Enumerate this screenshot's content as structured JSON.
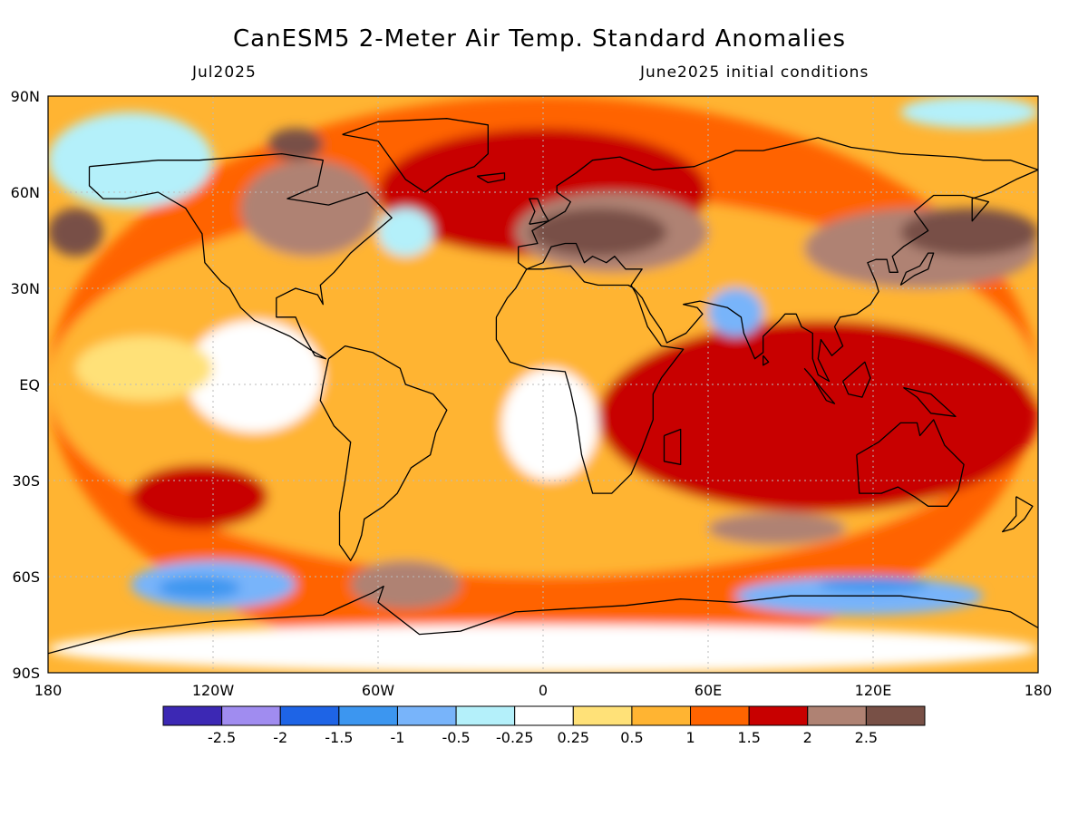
{
  "header": {
    "title": "CanESM5 2-Meter Air Temp. Standard Anomalies",
    "target_month": "Jul2025",
    "initial_conditions": "June2025 initial conditions"
  },
  "axes": {
    "lat_labels": [
      "90N",
      "60N",
      "30N",
      "EQ",
      "30S",
      "60S",
      "90S"
    ],
    "lon_labels": [
      "180",
      "120W",
      "60W",
      "0",
      "60E",
      "120E",
      "180"
    ]
  },
  "legend": {
    "tick_labels": [
      "-2.5",
      "-2",
      "-1.5",
      "-1",
      "-0.5",
      "-0.25",
      "0.25",
      "0.5",
      "1",
      "1.5",
      "2",
      "2.5"
    ],
    "colors": [
      "#3c28b4",
      "#a08cf0",
      "#1e64e6",
      "#3c96f0",
      "#78b4fa",
      "#b4f0fa",
      "#ffffff",
      "#ffe178",
      "#ffb432",
      "#ff6400",
      "#c80000",
      "#af8273",
      "#785046"
    ]
  },
  "map_style": {
    "ocean_base": "#ffb432",
    "coastline": "#000000",
    "grid": "#bbbbbb"
  },
  "anomaly_regions": [
    {
      "category": 9,
      "lon": [
        -180,
        180
      ],
      "lat": [
        -90,
        90
      ]
    },
    {
      "category": 8,
      "lon": [
        -180,
        180
      ],
      "lat": [
        -60,
        60
      ]
    },
    {
      "category": 10,
      "lon": [
        -150,
        -100
      ],
      "lat": [
        -45,
        -25
      ]
    },
    {
      "category": 10,
      "lon": [
        -60,
        60
      ],
      "lat": [
        40,
        80
      ]
    },
    {
      "category": 11,
      "lon": [
        -10,
        60
      ],
      "lat": [
        35,
        60
      ]
    },
    {
      "category": 12,
      "lon": [
        -5,
        45
      ],
      "lat": [
        40,
        55
      ]
    },
    {
      "category": 11,
      "lon": [
        95,
        180
      ],
      "lat": [
        30,
        55
      ]
    },
    {
      "category": 12,
      "lon": [
        130,
        180
      ],
      "lat": [
        40,
        55
      ]
    },
    {
      "category": 12,
      "lon": [
        -180,
        -160
      ],
      "lat": [
        40,
        55
      ]
    },
    {
      "category": 11,
      "lon": [
        -110,
        -60
      ],
      "lat": [
        40,
        70
      ]
    },
    {
      "category": 12,
      "lon": [
        -100,
        -80
      ],
      "lat": [
        70,
        80
      ]
    },
    {
      "category": 11,
      "lon": [
        60,
        110
      ],
      "lat": [
        -50,
        -40
      ]
    },
    {
      "category": 11,
      "lon": [
        100,
        150
      ],
      "lat": [
        -20,
        10
      ]
    },
    {
      "category": 10,
      "lon": [
        20,
        180
      ],
      "lat": [
        -40,
        20
      ]
    },
    {
      "category": 11,
      "lon": [
        -70,
        -30
      ],
      "lat": [
        -70,
        -55
      ]
    },
    {
      "category": 6,
      "lon": [
        -15,
        20
      ],
      "lat": [
        -30,
        5
      ]
    },
    {
      "category": 6,
      "lon": [
        -130,
        -80
      ],
      "lat": [
        -15,
        20
      ]
    },
    {
      "category": 7,
      "lon": [
        -170,
        -120
      ],
      "lat": [
        -5,
        15
      ]
    },
    {
      "category": 4,
      "lon": [
        -150,
        -90
      ],
      "lat": [
        -70,
        -55
      ]
    },
    {
      "category": 3,
      "lon": [
        -140,
        -110
      ],
      "lat": [
        -67,
        -60
      ]
    },
    {
      "category": 4,
      "lon": [
        70,
        160
      ],
      "lat": [
        -72,
        -60
      ]
    },
    {
      "category": 3,
      "lon": [
        100,
        140
      ],
      "lat": [
        -65,
        -60
      ]
    },
    {
      "category": 4,
      "lon": [
        60,
        80
      ],
      "lat": [
        15,
        30
      ]
    },
    {
      "category": 5,
      "lon": [
        -180,
        -120
      ],
      "lat": [
        55,
        85
      ]
    },
    {
      "category": 5,
      "lon": [
        130,
        180
      ],
      "lat": [
        80,
        90
      ]
    },
    {
      "category": 5,
      "lon": [
        -60,
        -40
      ],
      "lat": [
        40,
        55
      ]
    },
    {
      "category": 6,
      "lon": [
        -180,
        180
      ],
      "lat": [
        -90,
        -75
      ]
    }
  ],
  "coastlines": [
    {
      "name": "north-america",
      "points": [
        [
          -165,
          68
        ],
        [
          -140,
          70
        ],
        [
          -125,
          70
        ],
        [
          -95,
          72
        ],
        [
          -80,
          70
        ],
        [
          -82,
          62
        ],
        [
          -93,
          58
        ],
        [
          -78,
          56
        ],
        [
          -64,
          60
        ],
        [
          -55,
          52
        ],
        [
          -66,
          44
        ],
        [
          -70,
          41
        ],
        [
          -76,
          35
        ],
        [
          -81,
          31
        ],
        [
          -80,
          25
        ],
        [
          -82,
          28
        ],
        [
          -90,
          30
        ],
        [
          -97,
          27
        ],
        [
          -97,
          21
        ],
        [
          -90,
          21
        ],
        [
          -87,
          15
        ],
        [
          -83,
          9
        ],
        [
          -79,
          8
        ],
        [
          -85,
          11
        ],
        [
          -92,
          15
        ],
        [
          -105,
          20
        ],
        [
          -110,
          24
        ],
        [
          -114,
          30
        ],
        [
          -117,
          32
        ],
        [
          -123,
          38
        ],
        [
          -124,
          47
        ],
        [
          -130,
          55
        ],
        [
          -140,
          60
        ],
        [
          -152,
          58
        ],
        [
          -160,
          58
        ],
        [
          -165,
          62
        ],
        [
          -165,
          68
        ]
      ]
    },
    {
      "name": "greenland",
      "points": [
        [
          -73,
          78
        ],
        [
          -60,
          82
        ],
        [
          -35,
          83
        ],
        [
          -20,
          81
        ],
        [
          -20,
          72
        ],
        [
          -25,
          68
        ],
        [
          -35,
          65
        ],
        [
          -43,
          60
        ],
        [
          -50,
          64
        ],
        [
          -55,
          70
        ],
        [
          -60,
          76
        ],
        [
          -73,
          78
        ]
      ]
    },
    {
      "name": "south-america",
      "points": [
        [
          -78,
          8
        ],
        [
          -72,
          12
        ],
        [
          -62,
          10
        ],
        [
          -52,
          5
        ],
        [
          -50,
          0
        ],
        [
          -40,
          -3
        ],
        [
          -35,
          -8
        ],
        [
          -39,
          -15
        ],
        [
          -41,
          -22
        ],
        [
          -48,
          -26
        ],
        [
          -53,
          -34
        ],
        [
          -58,
          -38
        ],
        [
          -65,
          -42
        ],
        [
          -66,
          -47
        ],
        [
          -68,
          -52
        ],
        [
          -70,
          -55
        ],
        [
          -74,
          -50
        ],
        [
          -74,
          -40
        ],
        [
          -72,
          -30
        ],
        [
          -70,
          -18
        ],
        [
          -76,
          -13
        ],
        [
          -81,
          -5
        ],
        [
          -80,
          0
        ],
        [
          -78,
          8
        ]
      ]
    },
    {
      "name": "africa-eurasia",
      "points": [
        [
          -17,
          21
        ],
        [
          -17,
          14
        ],
        [
          -12,
          7
        ],
        [
          -5,
          5
        ],
        [
          8,
          4
        ],
        [
          10,
          -2
        ],
        [
          12,
          -10
        ],
        [
          14,
          -22
        ],
        [
          18,
          -34
        ],
        [
          25,
          -34
        ],
        [
          32,
          -28
        ],
        [
          36,
          -20
        ],
        [
          40,
          -11
        ],
        [
          40,
          -3
        ],
        [
          43,
          2
        ],
        [
          51,
          11
        ],
        [
          43,
          12
        ],
        [
          38,
          18
        ],
        [
          34,
          28
        ],
        [
          32,
          31
        ],
        [
          36,
          36
        ],
        [
          30,
          36
        ],
        [
          26,
          40
        ],
        [
          23,
          38
        ],
        [
          18,
          40
        ],
        [
          15,
          38
        ],
        [
          12,
          44
        ],
        [
          8,
          44
        ],
        [
          3,
          43
        ],
        [
          0,
          38
        ],
        [
          -6,
          36
        ],
        [
          -9,
          38
        ],
        [
          -9,
          43
        ],
        [
          -2,
          44
        ],
        [
          -4,
          48
        ],
        [
          2,
          51
        ],
        [
          8,
          54
        ],
        [
          10,
          57
        ],
        [
          5,
          60
        ],
        [
          5,
          62
        ],
        [
          12,
          66
        ],
        [
          18,
          70
        ],
        [
          28,
          71
        ],
        [
          40,
          67
        ],
        [
          55,
          68
        ],
        [
          70,
          73
        ],
        [
          80,
          73
        ],
        [
          100,
          77
        ],
        [
          112,
          74
        ],
        [
          130,
          72
        ],
        [
          150,
          71
        ],
        [
          160,
          70
        ],
        [
          170,
          70
        ],
        [
          180,
          67
        ],
        [
          172,
          64
        ],
        [
          163,
          60
        ],
        [
          156,
          58
        ],
        [
          156,
          51
        ],
        [
          162,
          57
        ],
        [
          153,
          59
        ],
        [
          142,
          59
        ],
        [
          135,
          54
        ],
        [
          140,
          48
        ],
        [
          131,
          43
        ],
        [
          127,
          40
        ],
        [
          129,
          35
        ],
        [
          126,
          35
        ],
        [
          125,
          39
        ],
        [
          121,
          39
        ],
        [
          118,
          38
        ],
        [
          121,
          32
        ],
        [
          122,
          29
        ],
        [
          119,
          25
        ],
        [
          114,
          22
        ],
        [
          108,
          21
        ],
        [
          106,
          18
        ],
        [
          109,
          12
        ],
        [
          105,
          9
        ],
        [
          101,
          14
        ],
        [
          100,
          8
        ],
        [
          104,
          1
        ],
        [
          100,
          3
        ],
        [
          98,
          8
        ],
        [
          98,
          16
        ],
        [
          94,
          18
        ],
        [
          92,
          22
        ],
        [
          88,
          22
        ],
        [
          86,
          20
        ],
        [
          80,
          15
        ],
        [
          80,
          10
        ],
        [
          77,
          8
        ],
        [
          73,
          16
        ],
        [
          72,
          21
        ],
        [
          67,
          24
        ],
        [
          62,
          25
        ],
        [
          57,
          26
        ],
        [
          51,
          25
        ],
        [
          56,
          24
        ],
        [
          58,
          22
        ],
        [
          52,
          16
        ],
        [
          45,
          13
        ],
        [
          43,
          17
        ],
        [
          39,
          22
        ],
        [
          36,
          27
        ],
        [
          33,
          30
        ],
        [
          31,
          31
        ],
        [
          25,
          31
        ],
        [
          20,
          31
        ],
        [
          15,
          32
        ],
        [
          10,
          37
        ],
        [
          0,
          36
        ],
        [
          -6,
          36
        ],
        [
          -10,
          30
        ],
        [
          -13,
          27
        ],
        [
          -17,
          21
        ]
      ]
    },
    {
      "name": "australia",
      "points": [
        [
          114,
          -22
        ],
        [
          122,
          -18
        ],
        [
          130,
          -12
        ],
        [
          136,
          -12
        ],
        [
          137,
          -16
        ],
        [
          142,
          -11
        ],
        [
          146,
          -19
        ],
        [
          153,
          -25
        ],
        [
          151,
          -33
        ],
        [
          147,
          -38
        ],
        [
          140,
          -38
        ],
        [
          135,
          -35
        ],
        [
          129,
          -32
        ],
        [
          123,
          -34
        ],
        [
          115,
          -34
        ],
        [
          114,
          -22
        ]
      ]
    },
    {
      "name": "antarctica",
      "points": [
        [
          -180,
          -84
        ],
        [
          -150,
          -77
        ],
        [
          -120,
          -74
        ],
        [
          -100,
          -73
        ],
        [
          -80,
          -72
        ],
        [
          -62,
          -65
        ],
        [
          -58,
          -63
        ],
        [
          -60,
          -68
        ],
        [
          -45,
          -78
        ],
        [
          -30,
          -77
        ],
        [
          -10,
          -71
        ],
        [
          10,
          -70
        ],
        [
          30,
          -69
        ],
        [
          50,
          -67
        ],
        [
          70,
          -68
        ],
        [
          90,
          -66
        ],
        [
          110,
          -66
        ],
        [
          130,
          -66
        ],
        [
          150,
          -68
        ],
        [
          170,
          -71
        ],
        [
          180,
          -76
        ]
      ]
    },
    {
      "name": "madagascar",
      "points": [
        [
          44,
          -16
        ],
        [
          50,
          -14
        ],
        [
          50,
          -25
        ],
        [
          44,
          -24
        ],
        [
          44,
          -16
        ]
      ]
    },
    {
      "name": "great-britain",
      "points": [
        [
          -5,
          50
        ],
        [
          2,
          51
        ],
        [
          0,
          54
        ],
        [
          -2,
          58
        ],
        [
          -5,
          58
        ],
        [
          -3,
          54
        ],
        [
          -5,
          50
        ]
      ]
    },
    {
      "name": "borneo",
      "points": [
        [
          109,
          1
        ],
        [
          117,
          7
        ],
        [
          119,
          2
        ],
        [
          116,
          -4
        ],
        [
          111,
          -3
        ],
        [
          109,
          1
        ]
      ]
    },
    {
      "name": "sumatra",
      "points": [
        [
          95,
          5
        ],
        [
          106,
          -6
        ],
        [
          103,
          -5
        ],
        [
          98,
          2
        ],
        [
          95,
          5
        ]
      ]
    },
    {
      "name": "new-guinea",
      "points": [
        [
          131,
          -1
        ],
        [
          141,
          -3
        ],
        [
          150,
          -10
        ],
        [
          141,
          -9
        ],
        [
          136,
          -4
        ],
        [
          131,
          -1
        ]
      ]
    },
    {
      "name": "japan",
      "points": [
        [
          130,
          31
        ],
        [
          135,
          34
        ],
        [
          140,
          36
        ],
        [
          142,
          41
        ],
        [
          140,
          41
        ],
        [
          137,
          37
        ],
        [
          132,
          35
        ],
        [
          130,
          31
        ]
      ]
    },
    {
      "name": "new-zealand",
      "points": [
        [
          172,
          -35
        ],
        [
          178,
          -38
        ],
        [
          175,
          -42
        ],
        [
          171,
          -45
        ],
        [
          167,
          -46
        ],
        [
          172,
          -41
        ],
        [
          172,
          -35
        ]
      ]
    },
    {
      "name": "iceland",
      "points": [
        [
          -24,
          65
        ],
        [
          -14,
          66
        ],
        [
          -14,
          64
        ],
        [
          -20,
          63
        ],
        [
          -24,
          65
        ]
      ]
    },
    {
      "name": "sri-lanka",
      "points": [
        [
          80,
          9
        ],
        [
          82,
          7
        ],
        [
          80,
          6
        ],
        [
          80,
          9
        ]
      ]
    }
  ]
}
